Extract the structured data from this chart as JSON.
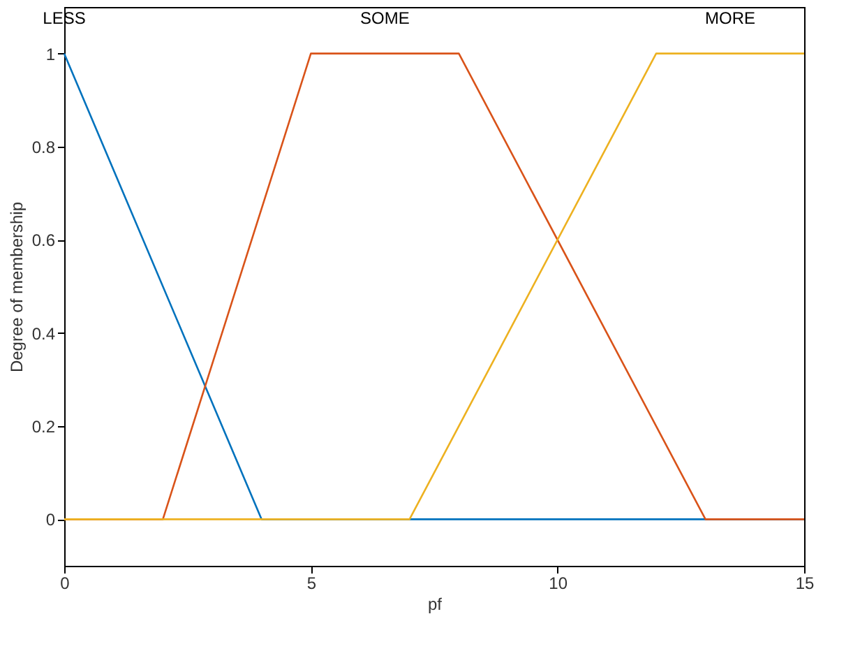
{
  "chart_data": {
    "type": "line",
    "xlabel": "pf",
    "ylabel": "Degree of membership",
    "xlim": [
      0,
      15
    ],
    "ylim": [
      -0.1,
      1.1
    ],
    "xticks": [
      0,
      5,
      10,
      15
    ],
    "yticks": [
      0,
      0.2,
      0.4,
      0.6,
      0.8,
      1
    ],
    "grid": false,
    "legend": false,
    "marker": "none",
    "line_style": "solid",
    "series": [
      {
        "name": "LESS",
        "color": "#0072bd",
        "x": [
          0,
          4,
          15
        ],
        "values": [
          1,
          0,
          0
        ]
      },
      {
        "name": "SOME",
        "color": "#d95319",
        "x": [
          0,
          2,
          5,
          8,
          13,
          15
        ],
        "values": [
          0,
          0,
          1,
          1,
          0,
          0
        ]
      },
      {
        "name": "MORE",
        "color": "#edb120",
        "x": [
          0,
          7,
          12,
          15
        ],
        "values": [
          0,
          0,
          1,
          1
        ]
      }
    ]
  }
}
